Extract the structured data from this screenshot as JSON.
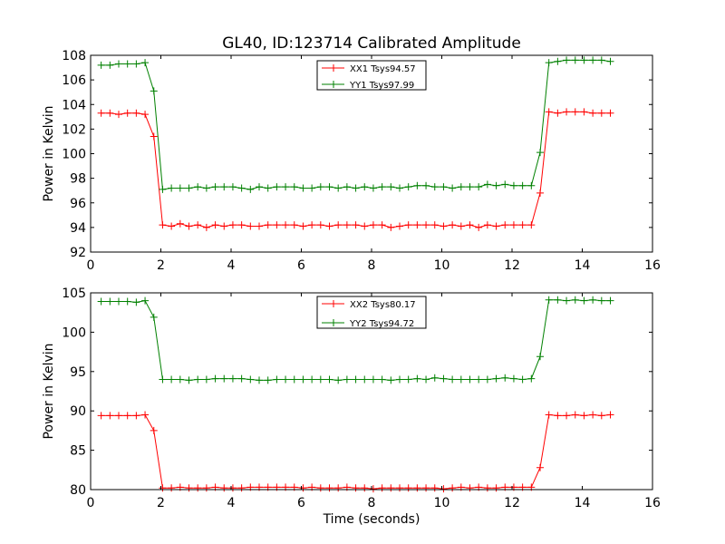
{
  "figure": {
    "title": "GL40, ID:123714 Calibrated Amplitude",
    "background": "#ffffff"
  },
  "chart_data": [
    {
      "type": "line",
      "xlabel": "",
      "ylabel": "Power in Kelvin",
      "xlim": [
        0,
        16
      ],
      "ylim": [
        92,
        108
      ],
      "xticks": [
        "0",
        "2",
        "4",
        "6",
        "8",
        "10",
        "12",
        "14",
        "16"
      ],
      "yticks": [
        "92",
        "94",
        "96",
        "98",
        "100",
        "102",
        "104",
        "106",
        "108"
      ],
      "grid": false,
      "legend_placement": "top-center",
      "x": [
        0.3,
        0.55,
        0.8,
        1.05,
        1.3,
        1.55,
        1.8,
        2.05,
        2.3,
        2.55,
        2.8,
        3.05,
        3.3,
        3.55,
        3.8,
        4.05,
        4.3,
        4.55,
        4.8,
        5.05,
        5.3,
        5.55,
        5.8,
        6.05,
        6.3,
        6.55,
        6.8,
        7.05,
        7.3,
        7.55,
        7.8,
        8.05,
        8.3,
        8.55,
        8.8,
        9.05,
        9.3,
        9.55,
        9.8,
        10.05,
        10.3,
        10.55,
        10.8,
        11.05,
        11.3,
        11.55,
        11.8,
        12.05,
        12.3,
        12.55,
        12.8,
        13.05,
        13.3,
        13.55,
        13.8,
        14.05,
        14.3,
        14.55,
        14.8
      ],
      "series": [
        {
          "name": "XX1 Tsys94.57",
          "color": "#ff0000",
          "values": [
            103.3,
            103.3,
            103.2,
            103.3,
            103.3,
            103.2,
            101.4,
            94.2,
            94.1,
            94.3,
            94.1,
            94.2,
            94.0,
            94.2,
            94.1,
            94.2,
            94.2,
            94.1,
            94.1,
            94.2,
            94.2,
            94.2,
            94.2,
            94.1,
            94.2,
            94.2,
            94.1,
            94.2,
            94.2,
            94.2,
            94.1,
            94.2,
            94.2,
            94.0,
            94.1,
            94.2,
            94.2,
            94.2,
            94.2,
            94.1,
            94.2,
            94.1,
            94.2,
            94.0,
            94.2,
            94.1,
            94.2,
            94.2,
            94.2,
            94.2,
            96.8,
            103.4,
            103.3,
            103.4,
            103.4,
            103.4,
            103.3,
            103.3,
            103.3
          ]
        },
        {
          "name": "YY1 Tsys97.99",
          "color": "#008000",
          "values": [
            107.2,
            107.2,
            107.3,
            107.3,
            107.3,
            107.4,
            105.1,
            97.1,
            97.2,
            97.2,
            97.2,
            97.3,
            97.2,
            97.3,
            97.3,
            97.3,
            97.2,
            97.1,
            97.3,
            97.2,
            97.3,
            97.3,
            97.3,
            97.2,
            97.2,
            97.3,
            97.3,
            97.2,
            97.3,
            97.2,
            97.3,
            97.2,
            97.3,
            97.3,
            97.2,
            97.3,
            97.4,
            97.4,
            97.3,
            97.3,
            97.2,
            97.3,
            97.3,
            97.3,
            97.5,
            97.4,
            97.5,
            97.4,
            97.4,
            97.4,
            100.1,
            107.4,
            107.5,
            107.6,
            107.6,
            107.6,
            107.6,
            107.6,
            107.5
          ]
        }
      ]
    },
    {
      "type": "line",
      "xlabel": "Time (seconds)",
      "ylabel": "Power in Kelvin",
      "xlim": [
        0,
        16
      ],
      "ylim": [
        80,
        105
      ],
      "xticks": [
        "0",
        "2",
        "4",
        "6",
        "8",
        "10",
        "12",
        "14",
        "16"
      ],
      "yticks": [
        "80",
        "85",
        "90",
        "95",
        "100",
        "105"
      ],
      "grid": false,
      "legend_placement": "top-center",
      "x": [
        0.3,
        0.55,
        0.8,
        1.05,
        1.3,
        1.55,
        1.8,
        2.05,
        2.3,
        2.55,
        2.8,
        3.05,
        3.3,
        3.55,
        3.8,
        4.05,
        4.3,
        4.55,
        4.8,
        5.05,
        5.3,
        5.55,
        5.8,
        6.05,
        6.3,
        6.55,
        6.8,
        7.05,
        7.3,
        7.55,
        7.8,
        8.05,
        8.3,
        8.55,
        8.8,
        9.05,
        9.3,
        9.55,
        9.8,
        10.05,
        10.3,
        10.55,
        10.8,
        11.05,
        11.3,
        11.55,
        11.8,
        12.05,
        12.3,
        12.55,
        12.8,
        13.05,
        13.3,
        13.55,
        13.8,
        14.05,
        14.3,
        14.55,
        14.8
      ],
      "series": [
        {
          "name": "XX2 Tsys80.17",
          "color": "#ff0000",
          "values": [
            89.4,
            89.4,
            89.4,
            89.4,
            89.4,
            89.5,
            87.5,
            80.2,
            80.2,
            80.3,
            80.2,
            80.2,
            80.2,
            80.3,
            80.2,
            80.2,
            80.2,
            80.3,
            80.3,
            80.3,
            80.3,
            80.3,
            80.3,
            80.2,
            80.3,
            80.2,
            80.2,
            80.2,
            80.3,
            80.2,
            80.2,
            80.1,
            80.2,
            80.2,
            80.2,
            80.2,
            80.2,
            80.2,
            80.2,
            80.1,
            80.2,
            80.3,
            80.2,
            80.3,
            80.2,
            80.2,
            80.3,
            80.3,
            80.3,
            80.3,
            82.8,
            89.5,
            89.4,
            89.4,
            89.5,
            89.4,
            89.5,
            89.4,
            89.5
          ]
        },
        {
          "name": "YY2 Tsys94.72",
          "color": "#008000",
          "values": [
            103.9,
            103.9,
            103.9,
            103.9,
            103.8,
            104.0,
            101.9,
            94.0,
            94.0,
            94.0,
            93.9,
            94.0,
            94.0,
            94.1,
            94.1,
            94.1,
            94.1,
            94.0,
            93.9,
            93.9,
            94.0,
            94.0,
            94.0,
            94.0,
            94.0,
            94.0,
            94.0,
            93.9,
            94.0,
            94.0,
            94.0,
            94.0,
            94.0,
            93.9,
            94.0,
            94.0,
            94.1,
            94.0,
            94.2,
            94.1,
            94.0,
            94.0,
            94.0,
            94.0,
            94.0,
            94.1,
            94.2,
            94.1,
            94.0,
            94.1,
            96.9,
            104.1,
            104.1,
            104.0,
            104.1,
            104.0,
            104.1,
            104.0,
            104.0
          ]
        }
      ]
    }
  ]
}
